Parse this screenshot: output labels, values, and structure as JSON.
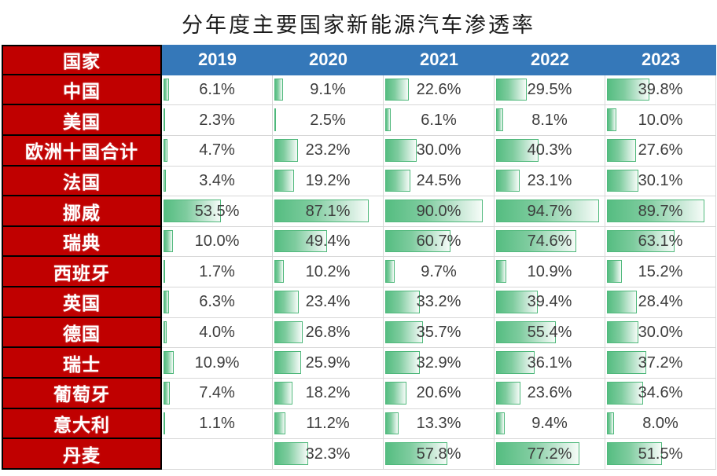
{
  "title": "分年度主要国家新能源汽车渗透率",
  "table": {
    "country_header": "国家",
    "year_headers": [
      "2019",
      "2020",
      "2021",
      "2022",
      "2023"
    ],
    "value_suffix": "%"
  },
  "colors": {
    "country_header_bg": "#C00000",
    "year_header_bg": "#3578B9",
    "bar_fill_green": "#55BD81",
    "bar_border_green": "#4FB87B",
    "cell_border_black": "#000000",
    "gridline_gray": "#D7D7D7",
    "value_text": "#3C3C3C"
  },
  "chart_data": {
    "type": "table",
    "title": "分年度主要国家新能源汽车渗透率",
    "unit": "%",
    "columns": [
      "国家",
      "2019",
      "2020",
      "2021",
      "2022",
      "2023"
    ],
    "categories": [
      "2019",
      "2020",
      "2021",
      "2022",
      "2023"
    ],
    "bar_scale": [
      0,
      100
    ],
    "bar_style": "green-gradient-databar",
    "series": [
      {
        "name": "中国",
        "values": [
          6.1,
          9.1,
          22.6,
          29.5,
          39.8
        ]
      },
      {
        "name": "美国",
        "values": [
          2.3,
          2.5,
          6.1,
          8.1,
          10.0
        ]
      },
      {
        "name": "欧洲十国合计",
        "values": [
          4.7,
          23.2,
          30.0,
          40.3,
          27.6
        ]
      },
      {
        "name": "法国",
        "values": [
          3.4,
          19.2,
          24.5,
          23.1,
          30.1
        ]
      },
      {
        "name": "挪威",
        "values": [
          53.5,
          87.1,
          90.0,
          94.7,
          89.7
        ]
      },
      {
        "name": "瑞典",
        "values": [
          10.0,
          49.4,
          60.7,
          74.6,
          63.1
        ]
      },
      {
        "name": "西班牙",
        "values": [
          1.7,
          10.2,
          9.7,
          10.9,
          15.2
        ]
      },
      {
        "name": "英国",
        "values": [
          6.3,
          23.4,
          33.2,
          39.4,
          28.4
        ]
      },
      {
        "name": "德国",
        "values": [
          4.0,
          26.8,
          35.7,
          55.4,
          30.0
        ]
      },
      {
        "name": "瑞士",
        "values": [
          10.9,
          25.9,
          32.9,
          36.1,
          37.2
        ]
      },
      {
        "name": "葡萄牙",
        "values": [
          7.4,
          18.2,
          20.6,
          23.6,
          34.6
        ]
      },
      {
        "name": "意大利",
        "values": [
          1.1,
          11.2,
          13.3,
          9.4,
          8.0
        ]
      },
      {
        "name": "丹麦",
        "values": [
          null,
          32.3,
          57.8,
          77.2,
          51.5
        ]
      }
    ]
  }
}
